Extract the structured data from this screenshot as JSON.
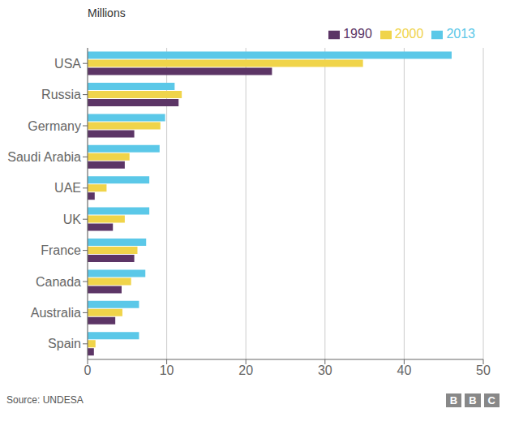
{
  "chart_data": {
    "type": "bar",
    "orientation": "horizontal",
    "title": "Millions",
    "categories": [
      "USA",
      "Russia",
      "Germany",
      "Saudi Arabia",
      "UAE",
      "UK",
      "France",
      "Canada",
      "Australia",
      "Spain"
    ],
    "series": [
      {
        "name": "2013",
        "color": "#5bc8e8",
        "values": [
          46.0,
          11.0,
          9.8,
          9.1,
          7.8,
          7.8,
          7.4,
          7.3,
          6.5,
          6.5
        ]
      },
      {
        "name": "2000",
        "color": "#f0d44a",
        "values": [
          34.8,
          11.9,
          9.2,
          5.3,
          2.4,
          4.7,
          6.3,
          5.5,
          4.4,
          1.0
        ]
      },
      {
        "name": "1990",
        "color": "#5c3566",
        "values": [
          23.3,
          11.5,
          5.9,
          4.7,
          0.9,
          3.2,
          5.9,
          4.3,
          3.5,
          0.8
        ]
      }
    ],
    "xlim": [
      0,
      50
    ],
    "xticks": [
      0,
      10,
      20,
      30,
      40,
      50
    ],
    "grid": true,
    "legend": "upper right",
    "annotations": [
      "Source: UNDESA",
      "BBC"
    ]
  }
}
